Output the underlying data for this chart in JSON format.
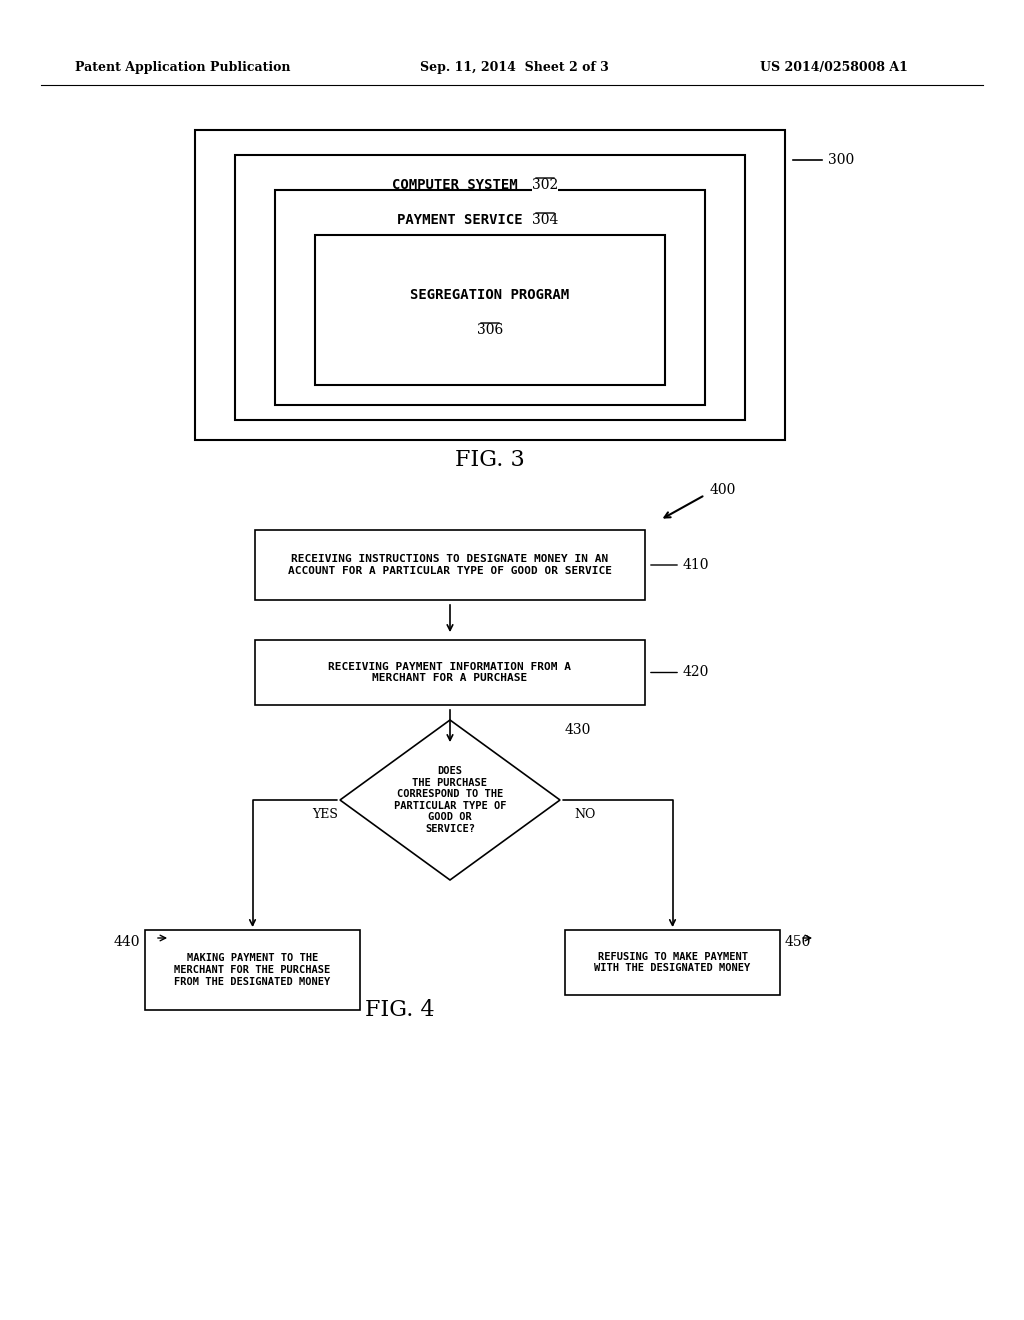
{
  "bg_color": "#ffffff",
  "header_left": "Patent Application Publication",
  "header_center": "Sep. 11, 2014  Sheet 2 of 3",
  "header_right": "US 2014/0258008 A1",
  "fig3_label": "FIG. 3",
  "fig4_label": "FIG. 4",
  "box300_label": "300",
  "box302_label": "302",
  "box304_label": "304",
  "box306_label": "306",
  "box400_label": "400",
  "box410_label": "410",
  "box420_label": "420",
  "box430_label": "430",
  "box440_label": "440",
  "box450_label": "450",
  "text_computer_system": "COMPUTER SYSTEM",
  "text_payment_service": "PAYMENT SERVICE",
  "text_segregation_program": "SEGREGATION PROGRAM",
  "text_410": "RECEIVING INSTRUCTIONS TO DESIGNATE MONEY IN AN\nACCOUNT FOR A PARTICULAR TYPE OF GOOD OR SERVICE",
  "text_420": "RECEIVING PAYMENT INFORMATION FROM A\nMERCHANT FOR A PURCHASE",
  "text_430": "DOES\nTHE PURCHASE\nCORRESPOND TO THE\nPARTICULAR TYPE OF\nGOOD OR\nSERVICE?",
  "text_440": "MAKING PAYMENT TO THE\nMERCHANT FOR THE PURCHASE\nFROM THE DESIGNATED MONEY",
  "text_450": "REFUSING TO MAKE PAYMENT\nWITH THE DESIGNATED MONEY",
  "text_yes": "YES",
  "text_no": "NO"
}
